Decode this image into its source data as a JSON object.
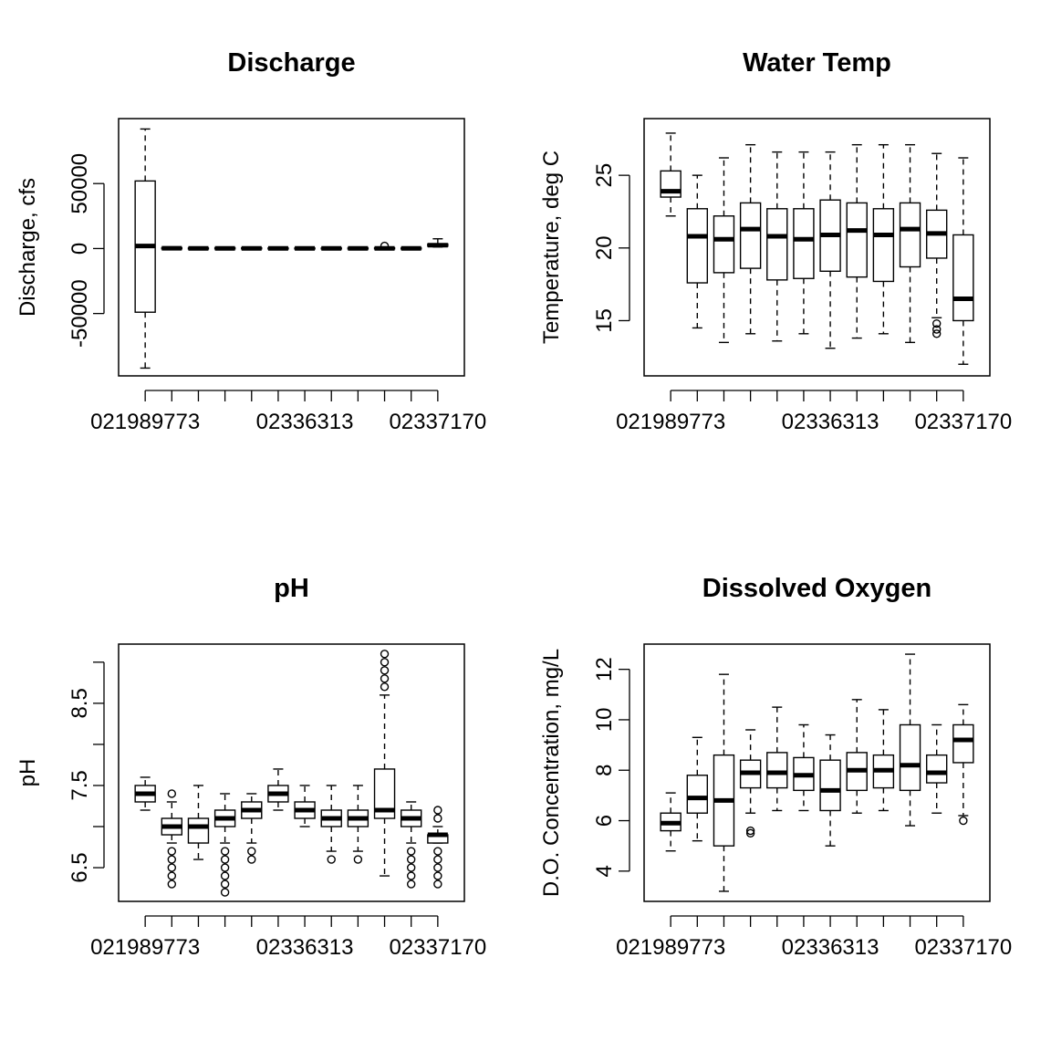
{
  "chart_data": [
    {
      "type": "boxplot",
      "title": "Discharge",
      "ylabel": "Discharge, cfs",
      "x_tick_labels": [
        "021989773",
        "02336313",
        "02337170"
      ],
      "y_ticks": [
        -50000,
        0,
        50000
      ],
      "y_tick_labels": [
        "-50000",
        "0",
        "50000"
      ],
      "ylim": [
        -98000,
        100000
      ],
      "boxes": [
        {
          "min": -92000,
          "q1": -49000,
          "median": 2000,
          "q3": 52000,
          "max": 92000,
          "outliers": []
        },
        {
          "min": -600,
          "q1": -200,
          "median": 200,
          "q3": 600,
          "max": 1000,
          "outliers": []
        },
        {
          "min": -500,
          "q1": -200,
          "median": 100,
          "q3": 400,
          "max": 700,
          "outliers": []
        },
        {
          "min": -600,
          "q1": -250,
          "median": 150,
          "q3": 550,
          "max": 900,
          "outliers": []
        },
        {
          "min": -600,
          "q1": -250,
          "median": 150,
          "q3": 550,
          "max": 900,
          "outliers": []
        },
        {
          "min": -500,
          "q1": -200,
          "median": 100,
          "q3": 400,
          "max": 700,
          "outliers": []
        },
        {
          "min": -500,
          "q1": -200,
          "median": 100,
          "q3": 400,
          "max": 700,
          "outliers": []
        },
        {
          "min": -500,
          "q1": -200,
          "median": 100,
          "q3": 400,
          "max": 700,
          "outliers": []
        },
        {
          "min": -500,
          "q1": -200,
          "median": 100,
          "q3": 400,
          "max": 700,
          "outliers": []
        },
        {
          "min": -600,
          "q1": -250,
          "median": 150,
          "q3": 550,
          "max": 900,
          "outliers": [
            2000
          ]
        },
        {
          "min": -500,
          "q1": -200,
          "median": 100,
          "q3": 400,
          "max": 700,
          "outliers": []
        },
        {
          "min": 1200,
          "q1": 1800,
          "median": 2600,
          "q3": 3500,
          "max": 7500,
          "outliers": []
        }
      ]
    },
    {
      "type": "boxplot",
      "title": "Water Temp",
      "ylabel": "Temperature, deg C",
      "x_tick_labels": [
        "021989773",
        "02336313",
        "02337170"
      ],
      "y_ticks": [
        15,
        20,
        25
      ],
      "y_tick_labels": [
        "15",
        "20",
        "25"
      ],
      "ylim": [
        11.2,
        28.9
      ],
      "boxes": [
        {
          "min": 22.2,
          "q1": 23.5,
          "median": 23.9,
          "q3": 25.3,
          "max": 27.9,
          "outliers": []
        },
        {
          "min": 14.5,
          "q1": 17.6,
          "median": 20.8,
          "q3": 22.7,
          "max": 25.0,
          "outliers": []
        },
        {
          "min": 13.5,
          "q1": 18.3,
          "median": 20.6,
          "q3": 22.2,
          "max": 26.2,
          "outliers": []
        },
        {
          "min": 14.1,
          "q1": 18.6,
          "median": 21.3,
          "q3": 23.1,
          "max": 27.1,
          "outliers": []
        },
        {
          "min": 13.6,
          "q1": 17.8,
          "median": 20.8,
          "q3": 22.7,
          "max": 26.6,
          "outliers": []
        },
        {
          "min": 14.1,
          "q1": 17.9,
          "median": 20.6,
          "q3": 22.7,
          "max": 26.6,
          "outliers": []
        },
        {
          "min": 13.1,
          "q1": 18.4,
          "median": 20.9,
          "q3": 23.3,
          "max": 26.6,
          "outliers": []
        },
        {
          "min": 13.8,
          "q1": 18.0,
          "median": 21.2,
          "q3": 23.1,
          "max": 27.1,
          "outliers": []
        },
        {
          "min": 14.1,
          "q1": 17.7,
          "median": 20.9,
          "q3": 22.7,
          "max": 27.1,
          "outliers": []
        },
        {
          "min": 13.5,
          "q1": 18.7,
          "median": 21.3,
          "q3": 23.1,
          "max": 27.1,
          "outliers": []
        },
        {
          "min": 15.2,
          "q1": 19.3,
          "median": 21.0,
          "q3": 22.6,
          "max": 26.5,
          "outliers": [
            14.1,
            14.4,
            14.8
          ]
        },
        {
          "min": 12.0,
          "q1": 15.0,
          "median": 16.5,
          "q3": 20.9,
          "max": 26.2,
          "outliers": []
        }
      ]
    },
    {
      "type": "boxplot",
      "title": "pH",
      "ylabel": "pH",
      "x_tick_labels": [
        "021989773",
        "02336313",
        "02337170"
      ],
      "y_ticks": [
        6.5,
        7.0,
        7.5,
        8.0,
        8.5,
        9.0
      ],
      "y_tick_labels": [
        "6.5",
        "",
        "7.5",
        "",
        "8.5",
        ""
      ],
      "ylim": [
        6.09,
        9.22
      ],
      "boxes": [
        {
          "min": 7.2,
          "q1": 7.3,
          "median": 7.4,
          "q3": 7.5,
          "max": 7.6,
          "outliers": []
        },
        {
          "min": 6.8,
          "q1": 6.9,
          "median": 7.0,
          "q3": 7.1,
          "max": 7.3,
          "outliers": [
            6.3,
            6.4,
            6.5,
            6.6,
            6.7,
            7.4
          ]
        },
        {
          "min": 6.6,
          "q1": 6.8,
          "median": 7.0,
          "q3": 7.1,
          "max": 7.5,
          "outliers": []
        },
        {
          "min": 6.8,
          "q1": 7.0,
          "median": 7.1,
          "q3": 7.2,
          "max": 7.4,
          "outliers": [
            6.2,
            6.3,
            6.4,
            6.5,
            6.6,
            6.7
          ]
        },
        {
          "min": 6.8,
          "q1": 7.1,
          "median": 7.2,
          "q3": 7.3,
          "max": 7.4,
          "outliers": [
            6.6,
            6.7
          ]
        },
        {
          "min": 7.2,
          "q1": 7.3,
          "median": 7.4,
          "q3": 7.5,
          "max": 7.7,
          "outliers": []
        },
        {
          "min": 7.0,
          "q1": 7.1,
          "median": 7.2,
          "q3": 7.3,
          "max": 7.5,
          "outliers": []
        },
        {
          "min": 6.7,
          "q1": 7.0,
          "median": 7.1,
          "q3": 7.2,
          "max": 7.5,
          "outliers": [
            6.6
          ]
        },
        {
          "min": 6.7,
          "q1": 7.0,
          "median": 7.1,
          "q3": 7.2,
          "max": 7.5,
          "outliers": [
            6.6
          ]
        },
        {
          "min": 6.4,
          "q1": 7.1,
          "median": 7.2,
          "q3": 7.7,
          "max": 8.6,
          "outliers": [
            8.7,
            8.8,
            8.9,
            9.0,
            9.1
          ]
        },
        {
          "min": 6.8,
          "q1": 7.0,
          "median": 7.1,
          "q3": 7.2,
          "max": 7.3,
          "outliers": [
            6.3,
            6.4,
            6.5,
            6.6,
            6.7
          ]
        },
        {
          "min": 6.8,
          "q1": 6.8,
          "median": 6.9,
          "q3": 6.9,
          "max": 7.0,
          "outliers": [
            6.3,
            6.4,
            6.5,
            6.6,
            6.7,
            7.1,
            7.2
          ]
        }
      ]
    },
    {
      "type": "boxplot",
      "title": "Dissolved Oxygen",
      "ylabel": "D.O. Concentration, mg/L",
      "x_tick_labels": [
        "021989773",
        "02336313",
        "02337170"
      ],
      "y_ticks": [
        4,
        6,
        8,
        10,
        12
      ],
      "y_tick_labels": [
        "4",
        "6",
        "8",
        "10",
        "12"
      ],
      "ylim": [
        2.8,
        13.0
      ],
      "boxes": [
        {
          "min": 4.8,
          "q1": 5.6,
          "median": 5.9,
          "q3": 6.3,
          "max": 7.1,
          "outliers": []
        },
        {
          "min": 5.2,
          "q1": 6.3,
          "median": 6.9,
          "q3": 7.8,
          "max": 9.3,
          "outliers": []
        },
        {
          "min": 3.2,
          "q1": 5.0,
          "median": 6.8,
          "q3": 8.6,
          "max": 11.8,
          "outliers": []
        },
        {
          "min": 6.3,
          "q1": 7.3,
          "median": 7.9,
          "q3": 8.4,
          "max": 9.6,
          "outliers": [
            5.5,
            5.6
          ]
        },
        {
          "min": 6.4,
          "q1": 7.3,
          "median": 7.9,
          "q3": 8.7,
          "max": 10.5,
          "outliers": []
        },
        {
          "min": 6.4,
          "q1": 7.2,
          "median": 7.8,
          "q3": 8.5,
          "max": 9.8,
          "outliers": []
        },
        {
          "min": 5.0,
          "q1": 6.4,
          "median": 7.2,
          "q3": 8.4,
          "max": 9.4,
          "outliers": []
        },
        {
          "min": 6.3,
          "q1": 7.2,
          "median": 8.0,
          "q3": 8.7,
          "max": 10.8,
          "outliers": []
        },
        {
          "min": 6.4,
          "q1": 7.3,
          "median": 8.0,
          "q3": 8.6,
          "max": 10.4,
          "outliers": []
        },
        {
          "min": 5.8,
          "q1": 7.2,
          "median": 8.2,
          "q3": 9.8,
          "max": 12.6,
          "outliers": []
        },
        {
          "min": 6.3,
          "q1": 7.5,
          "median": 7.9,
          "q3": 8.6,
          "max": 9.8,
          "outliers": []
        },
        {
          "min": 6.2,
          "q1": 8.3,
          "median": 9.2,
          "q3": 9.8,
          "max": 10.6,
          "outliers": [
            6.0
          ]
        }
      ]
    }
  ]
}
